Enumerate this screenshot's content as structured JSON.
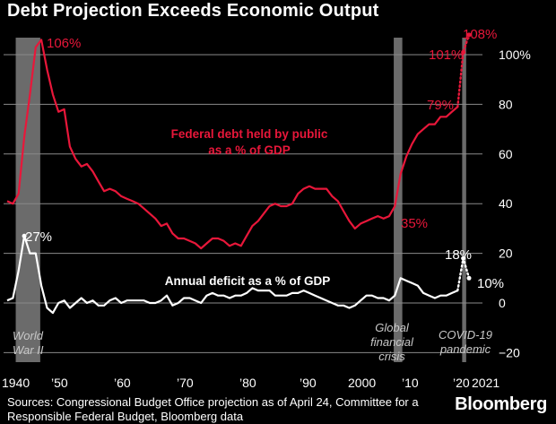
{
  "title": "Debt Projection Exceeds Economic Output",
  "source": "Sources: Congressional Budget Office projection as of April 24, Committee for a Responsible Federal Budget, Bloomberg data",
  "brand": "Bloomberg",
  "colors": {
    "debt": "#e8173a",
    "deficit": "#ffffff",
    "grid": "#8a8a8a",
    "band": "#6b6b6b",
    "background": "#000000"
  },
  "chart_data": {
    "type": "line",
    "title": "Debt Projection Exceeds Economic Output",
    "xlim": [
      1940,
      2021
    ],
    "ylim": [
      -20,
      110
    ],
    "grid": true,
    "y_ticks": [
      -20,
      0,
      20,
      40,
      60,
      80,
      100
    ],
    "y_tick_labels": [
      "−20",
      "0",
      "20",
      "40",
      "60",
      "80",
      "100%"
    ],
    "x_ticks": [
      1940,
      1950,
      1960,
      1970,
      1980,
      1990,
      2000,
      2010,
      2020,
      2021
    ],
    "x_tick_labels": [
      "1940",
      "’50",
      "’60",
      "’70",
      "’80",
      "’90",
      "2000",
      "’10",
      "’20",
      "2021"
    ],
    "shaded_periods": [
      {
        "label": "World War II",
        "start": 1941.5,
        "end": 1945.8
      },
      {
        "label": "Global financial crisis",
        "start": 2007.8,
        "end": 2009.3
      },
      {
        "label": "COVID-19 pandemic",
        "start": 2019.8,
        "end": 2020.5
      }
    ],
    "series": [
      {
        "name": "Federal debt held by public as a % of GDP",
        "color": "#e8173a",
        "x": [
          1940,
          1941,
          1942,
          1943,
          1944,
          1945,
          1946,
          1947,
          1948,
          1949,
          1950,
          1951,
          1952,
          1953,
          1954,
          1955,
          1956,
          1957,
          1958,
          1959,
          1960,
          1961,
          1962,
          1963,
          1964,
          1965,
          1966,
          1967,
          1968,
          1969,
          1970,
          1971,
          1972,
          1973,
          1974,
          1975,
          1976,
          1977,
          1978,
          1979,
          1980,
          1981,
          1982,
          1983,
          1984,
          1985,
          1986,
          1987,
          1988,
          1989,
          1990,
          1991,
          1992,
          1993,
          1994,
          1995,
          1996,
          1997,
          1998,
          1999,
          2000,
          2001,
          2002,
          2003,
          2004,
          2005,
          2006,
          2007,
          2008,
          2009,
          2010,
          2011,
          2012,
          2013,
          2014,
          2015,
          2016,
          2017,
          2018,
          2019
        ],
        "values": [
          41,
          40,
          44,
          67,
          84,
          103,
          106,
          94,
          84,
          77,
          78,
          63,
          58,
          55,
          56,
          53,
          49,
          45,
          46,
          45,
          43,
          42,
          41,
          40,
          38,
          36,
          34,
          31,
          32,
          28,
          26,
          26,
          25,
          24,
          22,
          24,
          26,
          26,
          25,
          23,
          24,
          23,
          27,
          31,
          33,
          36,
          39,
          40,
          39,
          39,
          40,
          44,
          46,
          47,
          46,
          46,
          46,
          43,
          41,
          37,
          33,
          30,
          32,
          33,
          34,
          35,
          34,
          35,
          39,
          52,
          59,
          64,
          68,
          70,
          72,
          72,
          75,
          75,
          77,
          79
        ],
        "projection_x": [
          2019,
          2020,
          2021
        ],
        "projection_values": [
          79,
          101,
          108
        ]
      },
      {
        "name": "Annual deficit as a % of GDP",
        "color": "#ffffff",
        "x": [
          1940,
          1941,
          1942,
          1943,
          1944,
          1945,
          1946,
          1947,
          1948,
          1949,
          1950,
          1951,
          1952,
          1953,
          1954,
          1955,
          1956,
          1957,
          1958,
          1959,
          1960,
          1961,
          1962,
          1963,
          1964,
          1965,
          1966,
          1967,
          1968,
          1969,
          1970,
          1971,
          1972,
          1973,
          1974,
          1975,
          1976,
          1977,
          1978,
          1979,
          1980,
          1981,
          1982,
          1983,
          1984,
          1985,
          1986,
          1987,
          1988,
          1989,
          1990,
          1991,
          1992,
          1993,
          1994,
          1995,
          1996,
          1997,
          1998,
          1999,
          2000,
          2001,
          2002,
          2003,
          2004,
          2005,
          2006,
          2007,
          2008,
          2009,
          2010,
          2011,
          2012,
          2013,
          2014,
          2015,
          2016,
          2017,
          2018,
          2019
        ],
        "values": [
          1,
          2,
          13,
          27,
          20,
          20,
          7,
          -2,
          -4,
          0,
          1,
          -2,
          0,
          2,
          0,
          1,
          -1,
          -1,
          1,
          2,
          0,
          1,
          1,
          1,
          1,
          0,
          0,
          1,
          3,
          -1,
          0,
          2,
          2,
          1,
          0,
          3,
          4,
          3,
          3,
          2,
          3,
          3,
          4,
          6,
          5,
          5,
          5,
          3,
          3,
          3,
          4,
          4,
          5,
          4,
          3,
          2,
          1,
          0,
          -1,
          -1,
          -2,
          -1,
          1,
          3,
          3,
          2,
          2,
          1,
          3,
          10,
          9,
          8,
          7,
          4,
          3,
          2,
          3,
          3,
          4,
          5
        ],
        "projection_x": [
          2019,
          2020,
          2021
        ],
        "projection_values": [
          5,
          18,
          10
        ]
      }
    ],
    "annotations": [
      {
        "text": "106%",
        "series": "debt",
        "x": 1946,
        "y": 106
      },
      {
        "text": "35%",
        "series": "debt",
        "x": 2007,
        "y": 35
      },
      {
        "text": "79%",
        "series": "debt",
        "x": 2019,
        "y": 79
      },
      {
        "text": "101%",
        "series": "debt",
        "x": 2020,
        "y": 101
      },
      {
        "text": "108%",
        "series": "debt",
        "x": 2021,
        "y": 108
      },
      {
        "text": "27%",
        "series": "deficit",
        "x": 1943,
        "y": 27
      },
      {
        "text": "18%",
        "series": "deficit",
        "x": 2020,
        "y": 18
      },
      {
        "text": "10%",
        "series": "deficit",
        "x": 2021,
        "y": 10
      }
    ],
    "series_labels": {
      "debt": [
        "Federal debt held by public",
        "as a % of GDP"
      ],
      "deficit": [
        "Annual deficit as a % of GDP"
      ]
    },
    "event_labels": {
      "ww2": [
        "World",
        "War II"
      ],
      "gfc": [
        "Global",
        "financial",
        "crisis"
      ],
      "covid": [
        "COVID-19",
        "pandemic"
      ]
    }
  }
}
